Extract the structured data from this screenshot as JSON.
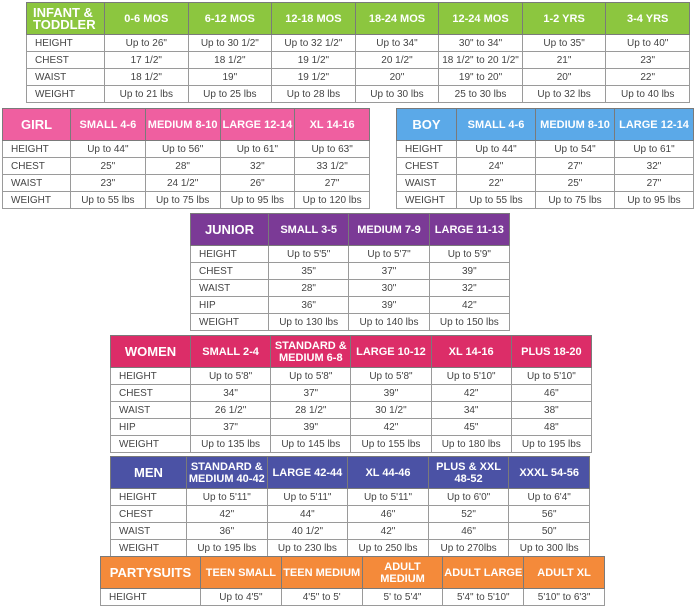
{
  "colors": {
    "infant": "#8cc63f",
    "girl": "#ef5fa0",
    "boy": "#5ba9e8",
    "junior": "#7b3a96",
    "women": "#dc2d68",
    "men": "#4b52a5",
    "party": "#f48a3a"
  },
  "tables": [
    {
      "id": "infant",
      "category": "INFANT & TODDLER",
      "color_key": "infant",
      "sizes": [
        "0-6 MOS",
        "6-12 MOS",
        "12-18 MOS",
        "18-24 MOS",
        "12-24 MOS",
        "1-2 YRS",
        "3-4 YRS"
      ],
      "rows": [
        {
          "label": "HEIGHT",
          "values": [
            "Up to 26\"",
            "Up to 30 1/2\"",
            "Up to 32 1/2\"",
            "Up to 34\"",
            "30\" to 34\"",
            "Up to 35\"",
            "Up to 40\""
          ]
        },
        {
          "label": "CHEST",
          "values": [
            "17 1/2\"",
            "18 1/2\"",
            "19 1/2\"",
            "20 1/2\"",
            "18 1/2\" to 20 1/2\"",
            "21\"",
            "23\""
          ]
        },
        {
          "label": "WAIST",
          "values": [
            "18 1/2\"",
            "19\"",
            "19 1/2\"",
            "20\"",
            "19\" to 20\"",
            "20\"",
            "22\""
          ]
        },
        {
          "label": "WEIGHT",
          "values": [
            "Up to 21 lbs",
            "Up to 25 lbs",
            "Up to 28 lbs",
            "Up to 30 lbs",
            "25 to 30 lbs",
            "Up to 32 lbs",
            "Up to 40 lbs"
          ]
        }
      ]
    },
    {
      "id": "girl",
      "category": "GIRL",
      "color_key": "girl",
      "sizes": [
        "SMALL 4-6",
        "MEDIUM 8-10",
        "LARGE 12-14",
        "XL 14-16"
      ],
      "rows": [
        {
          "label": "HEIGHT",
          "values": [
            "Up to 44\"",
            "Up to 56\"",
            "Up to 61\"",
            "Up to 63\""
          ]
        },
        {
          "label": "CHEST",
          "values": [
            "25\"",
            "28\"",
            "32\"",
            "33 1/2\""
          ]
        },
        {
          "label": "WAIST",
          "values": [
            "23\"",
            "24 1/2\"",
            "26\"",
            "27\""
          ]
        },
        {
          "label": "WEIGHT",
          "values": [
            "Up to 55 lbs",
            "Up to 75 lbs",
            "Up to 95 lbs",
            "Up to 120 lbs"
          ]
        }
      ]
    },
    {
      "id": "boy",
      "category": "BOY",
      "color_key": "boy",
      "sizes": [
        "SMALL 4-6",
        "MEDIUM 8-10",
        "LARGE 12-14"
      ],
      "rows": [
        {
          "label": "HEIGHT",
          "values": [
            "Up to 44\"",
            "Up to 54\"",
            "Up to 61\""
          ]
        },
        {
          "label": "CHEST",
          "values": [
            "24\"",
            "27\"",
            "32\""
          ]
        },
        {
          "label": "WAIST",
          "values": [
            "22\"",
            "25\"",
            "27\""
          ]
        },
        {
          "label": "WEIGHT",
          "values": [
            "Up to 55 lbs",
            "Up to 75 lbs",
            "Up to 95 lbs"
          ]
        }
      ]
    },
    {
      "id": "junior",
      "category": "JUNIOR",
      "color_key": "junior",
      "sizes": [
        "SMALL 3-5",
        "MEDIUM 7-9",
        "LARGE 11-13"
      ],
      "rows": [
        {
          "label": "HEIGHT",
          "values": [
            "Up to 5'5\"",
            "Up to 5'7\"",
            "Up to 5'9\""
          ]
        },
        {
          "label": "CHEST",
          "values": [
            "35\"",
            "37\"",
            "39\""
          ]
        },
        {
          "label": "WAIST",
          "values": [
            "28\"",
            "30\"",
            "32\""
          ]
        },
        {
          "label": "HIP",
          "values": [
            "36\"",
            "39\"",
            "42\""
          ]
        },
        {
          "label": "WEIGHT",
          "values": [
            "Up to 130 lbs",
            "Up to 140 lbs",
            "Up to 150 lbs"
          ]
        }
      ]
    },
    {
      "id": "women",
      "category": "WOMEN",
      "color_key": "women",
      "sizes": [
        "SMALL 2-4",
        "STANDARD & MEDIUM 6-8",
        "LARGE 10-12",
        "XL 14-16",
        "PLUS 18-20"
      ],
      "rows": [
        {
          "label": "HEIGHT",
          "values": [
            "Up to 5'8\"",
            "Up to 5'8\"",
            "Up to 5'8\"",
            "Up to 5'10\"",
            "Up to 5'10\""
          ]
        },
        {
          "label": "CHEST",
          "values": [
            "34\"",
            "37\"",
            "39\"",
            "42\"",
            "46\""
          ]
        },
        {
          "label": "WAIST",
          "values": [
            "26 1/2\"",
            "28 1/2\"",
            "30 1/2\"",
            "34\"",
            "38\""
          ]
        },
        {
          "label": "HIP",
          "values": [
            "37\"",
            "39\"",
            "42\"",
            "45\"",
            "48\""
          ]
        },
        {
          "label": "WEIGHT",
          "values": [
            "Up to 135 lbs",
            "Up to 145 lbs",
            "Up to 155 lbs",
            "Up to 180 lbs",
            "Up to 195 lbs"
          ]
        }
      ]
    },
    {
      "id": "men",
      "category": "MEN",
      "color_key": "men",
      "sizes": [
        "STANDARD & MEDIUM 40-42",
        "LARGE 42-44",
        "XL 44-46",
        "PLUS & XXL 48-52",
        "XXXL 54-56"
      ],
      "rows": [
        {
          "label": "HEIGHT",
          "values": [
            "Up to 5'11\"",
            "Up to 5'11\"",
            "Up to 5'11\"",
            "Up to 6'0\"",
            "Up to 6'4\""
          ]
        },
        {
          "label": "CHEST",
          "values": [
            "42\"",
            "44\"",
            "46\"",
            "52\"",
            "56\""
          ]
        },
        {
          "label": "WAIST",
          "values": [
            "36\"",
            "40 1/2\"",
            "42\"",
            "46\"",
            "50\""
          ]
        },
        {
          "label": "WEIGHT",
          "values": [
            "Up to 195 lbs",
            "Up to 230 lbs",
            "Up to 250 lbs",
            "Up to 270lbs",
            "Up to 300 lbs"
          ]
        }
      ]
    },
    {
      "id": "party",
      "category": "PARTYSUITS",
      "color_key": "party",
      "sizes": [
        "TEEN SMALL",
        "TEEN MEDIUM",
        "ADULT MEDIUM",
        "ADULT LARGE",
        "ADULT XL"
      ],
      "rows": [
        {
          "label": "HEIGHT",
          "values": [
            "Up to 4'5\"",
            "4'5\" to 5'",
            "5' to 5'4\"",
            "5'4\" to 5'10\"",
            "5'10\" to 6'3\""
          ]
        }
      ]
    }
  ]
}
